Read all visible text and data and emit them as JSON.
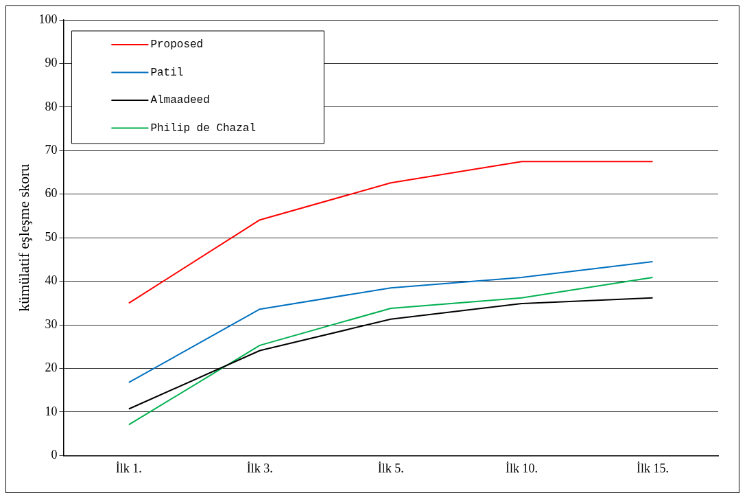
{
  "chart_data": {
    "type": "line",
    "ylabel": "kümülatif eşleşme skoru",
    "categories": [
      "İlk 1.",
      "İlk 3.",
      "İlk 5.",
      "İlk 10.",
      "İlk 15."
    ],
    "series": [
      {
        "name": "Proposed",
        "color": "#ff0000",
        "values": [
          35,
          54.1,
          62.6,
          67.5,
          67.5
        ]
      },
      {
        "name": "Patil",
        "color": "#0070c0",
        "values": [
          16.8,
          33.6,
          38.5,
          40.9,
          44.5
        ]
      },
      {
        "name": "Almaadeed",
        "color": "#000000",
        "values": [
          10.7,
          24.1,
          31.3,
          34.9,
          36.2
        ]
      },
      {
        "name": "Philip de Chazal",
        "color": "#00b050",
        "values": [
          7.1,
          25.3,
          33.8,
          36.2,
          40.9
        ]
      }
    ],
    "ylim": [
      0,
      100
    ],
    "yticks": [
      0,
      10,
      20,
      30,
      40,
      50,
      60,
      70,
      80,
      90,
      100
    ],
    "grid": "y",
    "legend": "top left",
    "marker": "none",
    "line_style": "solid"
  }
}
